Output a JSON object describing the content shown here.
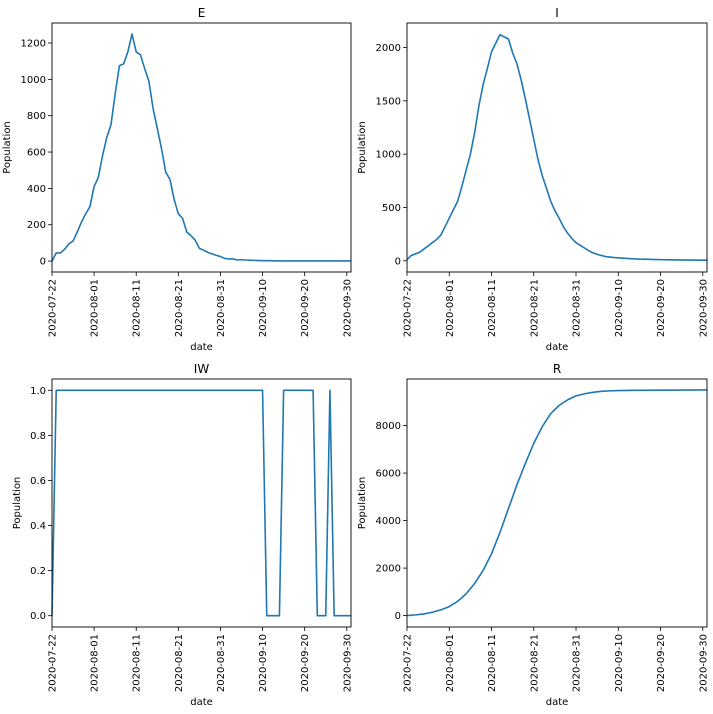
{
  "chart_data": [
    {
      "type": "line",
      "title": "E",
      "xlabel": "date",
      "ylabel": "Population",
      "xlim": [
        0,
        71
      ],
      "ylim": [
        -60,
        1310
      ],
      "xticks": [
        {
          "x": 0,
          "label": "2020-07-22"
        },
        {
          "x": 10,
          "label": "2020-08-01"
        },
        {
          "x": 20,
          "label": "2020-08-11"
        },
        {
          "x": 30,
          "label": "2020-08-21"
        },
        {
          "x": 40,
          "label": "2020-08-31"
        },
        {
          "x": 50,
          "label": "2020-09-10"
        },
        {
          "x": 60,
          "label": "2020-09-20"
        },
        {
          "x": 70,
          "label": "2020-09-30"
        }
      ],
      "yticks": [
        0,
        200,
        400,
        600,
        800,
        1000,
        1200
      ],
      "yticklabels": [
        "0",
        "200",
        "400",
        "600",
        "800",
        "1000",
        "1200"
      ],
      "series": [
        {
          "name": "E",
          "x": [
            0,
            1,
            2,
            3,
            4,
            5,
            6,
            7,
            8,
            9,
            10,
            11,
            12,
            13,
            14,
            15,
            16,
            17,
            18,
            19,
            20,
            21,
            22,
            23,
            24,
            25,
            26,
            27,
            28,
            29,
            30,
            31,
            32,
            33,
            34,
            35,
            36,
            37,
            38,
            39,
            40,
            41,
            42,
            43,
            44,
            45,
            46,
            47,
            48,
            49,
            50,
            51,
            52,
            53,
            54,
            55,
            56,
            57,
            58,
            59,
            60,
            61,
            62,
            63,
            64,
            65,
            66,
            67,
            68,
            69,
            70,
            71
          ],
          "values": [
            0,
            45,
            45,
            65,
            95,
            110,
            160,
            215,
            260,
            300,
            410,
            460,
            580,
            680,
            750,
            920,
            1075,
            1085,
            1150,
            1250,
            1150,
            1135,
            1060,
            990,
            840,
            730,
            620,
            490,
            450,
            340,
            260,
            235,
            160,
            140,
            115,
            70,
            60,
            48,
            40,
            32,
            25,
            15,
            12,
            12,
            6,
            8,
            6,
            5,
            4,
            3,
            2,
            2,
            2,
            1,
            1,
            1,
            1,
            1,
            1,
            1,
            1,
            1,
            1,
            1,
            1,
            1,
            1,
            1,
            1,
            1,
            1,
            1
          ]
        }
      ]
    },
    {
      "type": "line",
      "title": "I",
      "xlabel": "date",
      "ylabel": "Population",
      "xlim": [
        0,
        71
      ],
      "ylim": [
        -105,
        2230
      ],
      "xticks": [
        {
          "x": 0,
          "label": "2020-07-22"
        },
        {
          "x": 10,
          "label": "2020-08-01"
        },
        {
          "x": 20,
          "label": "2020-08-11"
        },
        {
          "x": 30,
          "label": "2020-08-21"
        },
        {
          "x": 40,
          "label": "2020-08-31"
        },
        {
          "x": 50,
          "label": "2020-09-10"
        },
        {
          "x": 60,
          "label": "2020-09-20"
        },
        {
          "x": 70,
          "label": "2020-09-30"
        }
      ],
      "yticks": [
        0,
        500,
        1000,
        1500,
        2000
      ],
      "yticklabels": [
        "0",
        "500",
        "1000",
        "1500",
        "2000"
      ],
      "series": [
        {
          "name": "I",
          "x": [
            0,
            1,
            2,
            3,
            4,
            5,
            6,
            7,
            8,
            9,
            10,
            11,
            12,
            13,
            14,
            15,
            16,
            17,
            18,
            19,
            20,
            21,
            22,
            23,
            24,
            25,
            26,
            27,
            28,
            29,
            30,
            31,
            32,
            33,
            34,
            35,
            36,
            37,
            38,
            39,
            40,
            41,
            42,
            43,
            44,
            45,
            46,
            47,
            48,
            49,
            50,
            51,
            52,
            53,
            54,
            55,
            56,
            57,
            58,
            59,
            60,
            61,
            62,
            63,
            64,
            65,
            66,
            67,
            68,
            69,
            70,
            71
          ],
          "values": [
            10,
            50,
            65,
            80,
            110,
            140,
            170,
            200,
            240,
            320,
            400,
            480,
            560,
            700,
            850,
            1000,
            1200,
            1450,
            1650,
            1800,
            1960,
            2040,
            2120,
            2100,
            2080,
            1950,
            1850,
            1700,
            1520,
            1330,
            1140,
            950,
            800,
            680,
            560,
            470,
            400,
            320,
            260,
            210,
            170,
            145,
            120,
            95,
            75,
            60,
            50,
            40,
            35,
            30,
            28,
            25,
            22,
            20,
            18,
            16,
            15,
            14,
            13,
            12,
            11,
            10,
            9,
            9,
            8,
            8,
            7,
            7,
            7,
            6,
            6,
            6
          ]
        }
      ]
    },
    {
      "type": "line",
      "title": "IW",
      "xlabel": "date",
      "ylabel": "Population",
      "xlim": [
        0,
        71
      ],
      "ylim": [
        -0.05,
        1.05
      ],
      "xticks": [
        {
          "x": 0,
          "label": "2020-07-22"
        },
        {
          "x": 10,
          "label": "2020-08-01"
        },
        {
          "x": 20,
          "label": "2020-08-11"
        },
        {
          "x": 30,
          "label": "2020-08-21"
        },
        {
          "x": 40,
          "label": "2020-08-31"
        },
        {
          "x": 50,
          "label": "2020-09-10"
        },
        {
          "x": 60,
          "label": "2020-09-20"
        },
        {
          "x": 70,
          "label": "2020-09-30"
        }
      ],
      "yticks": [
        0.0,
        0.2,
        0.4,
        0.6,
        0.8,
        1.0
      ],
      "yticklabels": [
        "0.0",
        "0.2",
        "0.4",
        "0.6",
        "0.8",
        "1.0"
      ],
      "series": [
        {
          "name": "IW",
          "x": [
            0,
            1,
            2,
            3,
            4,
            5,
            6,
            7,
            8,
            9,
            10,
            11,
            12,
            13,
            14,
            15,
            16,
            17,
            18,
            19,
            20,
            21,
            22,
            23,
            24,
            25,
            26,
            27,
            28,
            29,
            30,
            31,
            32,
            33,
            34,
            35,
            36,
            37,
            38,
            39,
            40,
            41,
            42,
            43,
            44,
            45,
            46,
            47,
            48,
            49,
            50,
            51,
            52,
            53,
            54,
            55,
            56,
            57,
            58,
            59,
            60,
            61,
            62,
            63,
            64,
            65,
            66,
            67,
            68,
            69,
            70,
            71
          ],
          "values": [
            0,
            1,
            1,
            1,
            1,
            1,
            1,
            1,
            1,
            1,
            1,
            1,
            1,
            1,
            1,
            1,
            1,
            1,
            1,
            1,
            1,
            1,
            1,
            1,
            1,
            1,
            1,
            1,
            1,
            1,
            1,
            1,
            1,
            1,
            1,
            1,
            1,
            1,
            1,
            1,
            1,
            1,
            1,
            1,
            1,
            1,
            1,
            1,
            1,
            1,
            1,
            0,
            0,
            0,
            0,
            1,
            1,
            1,
            1,
            1,
            1,
            1,
            1,
            0,
            0,
            0,
            1,
            0,
            0,
            0,
            0,
            0
          ]
        }
      ]
    },
    {
      "type": "line",
      "title": "R",
      "xlabel": "date",
      "ylabel": "Population",
      "xlim": [
        0,
        71
      ],
      "ylim": [
        -480,
        9960
      ],
      "xticks": [
        {
          "x": 0,
          "label": "2020-07-22"
        },
        {
          "x": 10,
          "label": "2020-08-01"
        },
        {
          "x": 20,
          "label": "2020-08-11"
        },
        {
          "x": 30,
          "label": "2020-08-21"
        },
        {
          "x": 40,
          "label": "2020-08-31"
        },
        {
          "x": 50,
          "label": "2020-09-10"
        },
        {
          "x": 60,
          "label": "2020-09-20"
        },
        {
          "x": 70,
          "label": "2020-09-30"
        }
      ],
      "yticks": [
        0,
        2000,
        4000,
        6000,
        8000
      ],
      "yticklabels": [
        "0",
        "2000",
        "4000",
        "6000",
        "8000"
      ],
      "series": [
        {
          "name": "R",
          "x": [
            0,
            2,
            4,
            6,
            8,
            10,
            12,
            14,
            16,
            18,
            20,
            22,
            24,
            26,
            28,
            30,
            32,
            34,
            36,
            38,
            40,
            42,
            44,
            46,
            48,
            50,
            52,
            55,
            60,
            65,
            70,
            71
          ],
          "values": [
            0,
            30,
            70,
            140,
            240,
            380,
            600,
            920,
            1350,
            1900,
            2600,
            3500,
            4500,
            5500,
            6400,
            7250,
            7950,
            8500,
            8850,
            9080,
            9250,
            9340,
            9400,
            9440,
            9460,
            9475,
            9480,
            9485,
            9490,
            9495,
            9500,
            9500
          ]
        }
      ]
    }
  ]
}
